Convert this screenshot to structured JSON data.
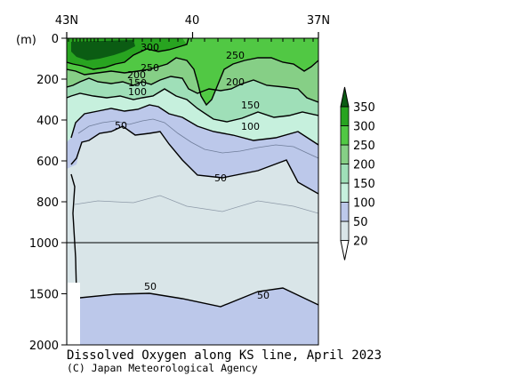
{
  "chart_data": {
    "type": "contour-section",
    "title": "Dissolved Oxygen along KS line, April 2023",
    "credit": "(C) Japan Meteorological Agency",
    "y_unit_label": "(m)",
    "x_tick_labels": [
      "43N",
      "40",
      "37N"
    ],
    "y_upper_ticks": [
      0,
      200,
      400,
      600,
      800,
      1000
    ],
    "y_lower_ticks": [
      1000,
      1500,
      2000
    ],
    "y_break_at": 1000,
    "y_range": [
      0,
      2000
    ],
    "legend": {
      "levels": [
        20,
        50,
        100,
        150,
        200,
        250,
        300,
        350
      ],
      "colors": [
        "#d9e5e8",
        "#bcc8ea",
        "#c6f0dd",
        "#9fdfb8",
        "#86cf86",
        "#51c844",
        "#28a420",
        "#0b5c13"
      ]
    },
    "contour_labels": [
      {
        "text": "300"
      },
      {
        "text": "250"
      },
      {
        "text": "200"
      },
      {
        "text": "150"
      },
      {
        "text": "100"
      },
      {
        "text": "50"
      },
      {
        "text": "250"
      },
      {
        "text": "200"
      },
      {
        "text": "150"
      },
      {
        "text": "100"
      },
      {
        "text": "50"
      },
      {
        "text": "50"
      },
      {
        "text": "50"
      }
    ]
  }
}
